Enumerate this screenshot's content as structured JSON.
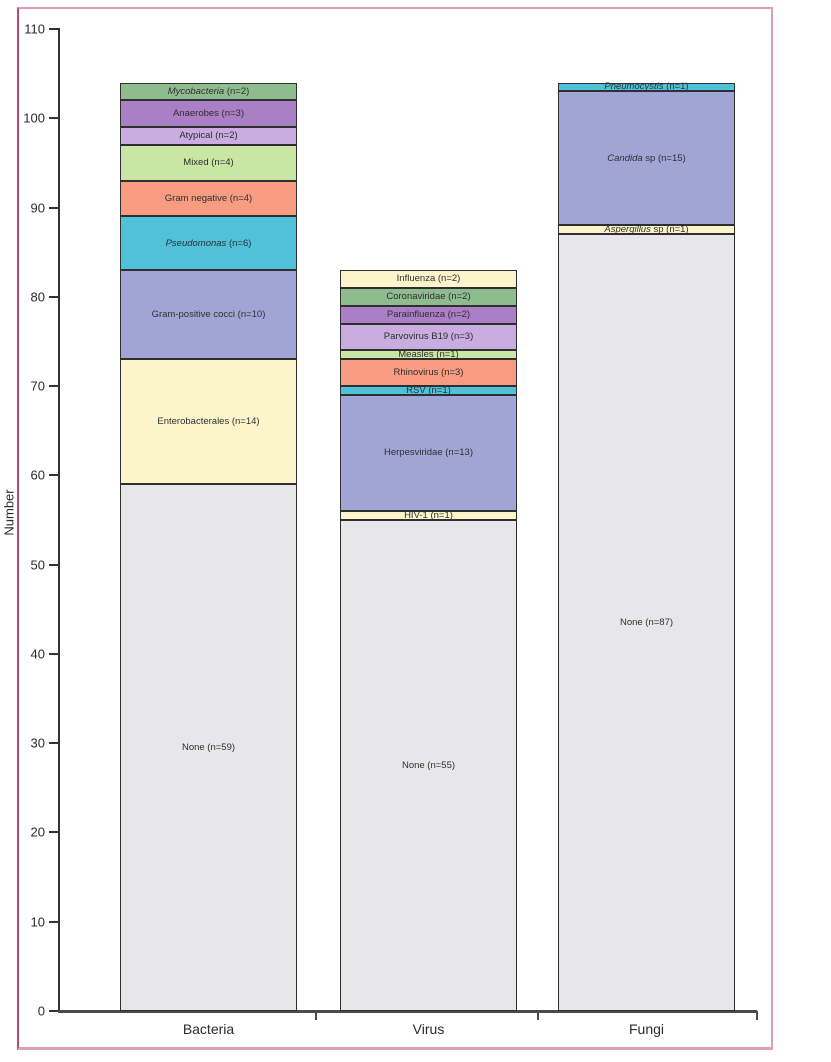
{
  "figure": {
    "frame_color": "#e49cb1",
    "frame_left_color": "#b9496a"
  },
  "chart_data": {
    "type": "bar",
    "stacked": true,
    "title": "",
    "xlabel": "",
    "ylabel": "Number",
    "ylim": [
      0,
      110
    ],
    "yticks": [
      0,
      10,
      20,
      30,
      40,
      50,
      60,
      70,
      80,
      90,
      100,
      110
    ],
    "grid": false,
    "legend": "none",
    "segment_border_color": "#2f2f2f",
    "categories": [
      "Bacteria",
      "Virus",
      "Fungi"
    ],
    "palette": {
      "none_grey": "#e7e7e9",
      "pale_yellow": "#fcf5cb",
      "blue_purple": "#a1a5d6",
      "cyan": "#4fc2da",
      "salmon": "#f79c81",
      "light_green": "#c9e6a4",
      "light_purple": "#c9ace0",
      "medium_purple": "#aa7fc6",
      "green": "#8ebc8e"
    },
    "series_by_category": [
      {
        "category": "Bacteria",
        "total": 104,
        "segments": [
          {
            "name": "None",
            "suffix": "",
            "italic": false,
            "n": 59,
            "color": "#e7e7e9"
          },
          {
            "name": "Enterobacterales",
            "suffix": "",
            "italic": false,
            "n": 14,
            "color": "#fcf5cb"
          },
          {
            "name": "Gram-positive cocci",
            "suffix": "",
            "italic": false,
            "n": 10,
            "color": "#a1a5d6"
          },
          {
            "name": "Pseudomonas",
            "suffix": "",
            "italic": true,
            "n": 6,
            "color": "#4fc2da"
          },
          {
            "name": "Gram negative",
            "suffix": "",
            "italic": false,
            "n": 4,
            "color": "#f79c81"
          },
          {
            "name": "Mixed",
            "suffix": "",
            "italic": false,
            "n": 4,
            "color": "#c9e6a4"
          },
          {
            "name": "Atypical",
            "suffix": "",
            "italic": false,
            "n": 2,
            "color": "#c9ace0"
          },
          {
            "name": "Anaerobes",
            "suffix": "",
            "italic": false,
            "n": 3,
            "color": "#aa7fc6"
          },
          {
            "name": "Mycobacteria",
            "suffix": "",
            "italic": true,
            "n": 2,
            "color": "#8ebc8e"
          }
        ]
      },
      {
        "category": "Virus",
        "total": 83,
        "segments": [
          {
            "name": "None",
            "suffix": "",
            "italic": false,
            "n": 55,
            "color": "#e7e7e9"
          },
          {
            "name": "HIV-1",
            "suffix": "",
            "italic": false,
            "n": 1,
            "color": "#fcf5cb"
          },
          {
            "name": "Herpesviridae",
            "suffix": "",
            "italic": false,
            "n": 13,
            "color": "#a1a5d6"
          },
          {
            "name": "RSV",
            "suffix": "",
            "italic": false,
            "n": 1,
            "color": "#4fc2da"
          },
          {
            "name": "Rhinovirus",
            "suffix": "",
            "italic": false,
            "n": 3,
            "color": "#f79c81"
          },
          {
            "name": "Measles",
            "suffix": "",
            "italic": false,
            "n": 1,
            "color": "#c9e6a4"
          },
          {
            "name": "Parvovirus B19",
            "suffix": "",
            "italic": false,
            "n": 3,
            "color": "#c9ace0"
          },
          {
            "name": "Parainfluenza",
            "suffix": "",
            "italic": false,
            "n": 2,
            "color": "#aa7fc6"
          },
          {
            "name": "Coronaviridae",
            "suffix": "",
            "italic": false,
            "n": 2,
            "color": "#8ebc8e"
          },
          {
            "name": "Influenza",
            "suffix": "",
            "italic": false,
            "n": 2,
            "color": "#fcf5cb"
          }
        ]
      },
      {
        "category": "Fungi",
        "total": 104,
        "segments": [
          {
            "name": "None",
            "suffix": "",
            "italic": false,
            "n": 87,
            "color": "#e7e7e9"
          },
          {
            "name": "Aspergillus",
            "suffix": " sp",
            "italic": true,
            "n": 1,
            "color": "#fcf5cb"
          },
          {
            "name": "Candida",
            "suffix": " sp",
            "italic": true,
            "n": 15,
            "color": "#a1a5d6"
          },
          {
            "name": "Pneumocystis",
            "suffix": "",
            "italic": true,
            "n": 1,
            "color": "#4fc2da"
          }
        ]
      }
    ],
    "label_format": "{name}{suffix} (n={n})"
  }
}
